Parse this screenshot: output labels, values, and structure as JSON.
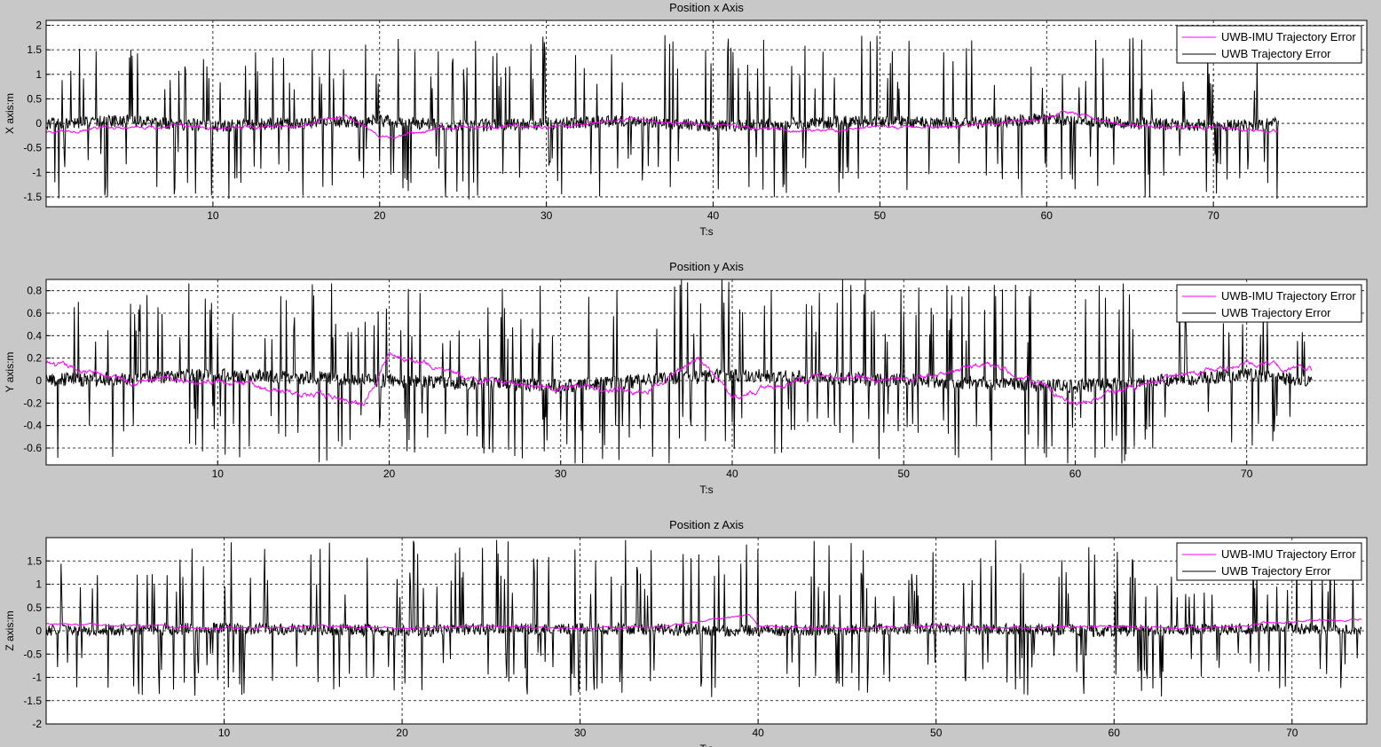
{
  "colors": {
    "figure_background": "#c8c8c8",
    "axes_background": "#ffffff",
    "imu_series": "#ff00ff",
    "uwb_series": "#000000"
  },
  "chart_data": [
    {
      "type": "line",
      "title": "Position x Axis",
      "xlabel": "T:s",
      "ylabel": "X axis:m",
      "xlim": [
        0,
        79.2
      ],
      "ylim": [
        -1.7,
        2.1
      ],
      "xticks": [
        10,
        20,
        30,
        40,
        50,
        60,
        70
      ],
      "yticks": [
        -1.5,
        -1,
        -0.5,
        0,
        0.5,
        1,
        1.5,
        2
      ],
      "grid": true,
      "legend_position": "top-right",
      "x_end": 73.9,
      "series": [
        {
          "name": "UWB-IMU Trajectory Error",
          "color": "#ff00ff",
          "amplitude_range": [
            -0.4,
            0.3
          ],
          "x": [
            0,
            5,
            10,
            15,
            18,
            20,
            25,
            30,
            35,
            40,
            45,
            50,
            55,
            60,
            61,
            65,
            70,
            73.9
          ],
          "y": [
            -0.2,
            -0.05,
            -0.1,
            -0.05,
            0.15,
            -0.3,
            -0.05,
            -0.1,
            0.1,
            -0.05,
            -0.15,
            -0.1,
            -0.05,
            0.1,
            0.25,
            -0.05,
            -0.1,
            -0.15
          ]
        },
        {
          "name": "UWB Trajectory Error",
          "color": "#000000",
          "amplitude_range": [
            -1.55,
            1.8
          ],
          "x": [
            0,
            5,
            10,
            15,
            20,
            25,
            30,
            35,
            40,
            45,
            50,
            55,
            60,
            65,
            70,
            73.9
          ],
          "y": [
            0.0,
            0.05,
            -0.05,
            0.0,
            0.05,
            -0.05,
            0.0,
            0.05,
            -0.05,
            0.0,
            0.05,
            0.0,
            0.1,
            0.0,
            -0.05,
            0.0
          ]
        }
      ]
    },
    {
      "type": "line",
      "title": "Position y Axis",
      "xlabel": "T:s",
      "ylabel": "Y axis:m",
      "xlim": [
        0,
        77
      ],
      "ylim": [
        -0.75,
        0.9
      ],
      "xticks": [
        10,
        20,
        30,
        40,
        50,
        60,
        70
      ],
      "yticks": [
        -0.6,
        -0.4,
        -0.2,
        0,
        0.2,
        0.4,
        0.6,
        0.8
      ],
      "grid": true,
      "legend_position": "top-right",
      "x_end": 73.8,
      "series": [
        {
          "name": "UWB-IMU Trajectory Error",
          "color": "#ff00ff",
          "amplitude_range": [
            -0.25,
            0.25
          ],
          "x": [
            0,
            5,
            10,
            18.5,
            20,
            25,
            30,
            35,
            38,
            40,
            45,
            50,
            55,
            60,
            65,
            70,
            73.8
          ],
          "y": [
            0.15,
            0.0,
            0.0,
            -0.2,
            0.25,
            0.0,
            -0.05,
            -0.1,
            0.2,
            -0.15,
            0.05,
            0.0,
            0.15,
            -0.2,
            0.0,
            0.15,
            0.1
          ]
        },
        {
          "name": "UWB Trajectory Error",
          "color": "#000000",
          "amplitude_range": [
            -0.75,
            0.9
          ],
          "x": [
            0,
            10,
            20,
            30,
            40,
            50,
            60,
            70,
            73.8
          ],
          "y": [
            0.0,
            0.05,
            0.0,
            -0.05,
            0.05,
            0.0,
            -0.05,
            0.05,
            0.0
          ]
        }
      ]
    },
    {
      "type": "line",
      "title": "Position z Axis",
      "xlabel": "T:s",
      "ylabel": "Z axis:m",
      "xlim": [
        0,
        74.2
      ],
      "ylim": [
        -2,
        2
      ],
      "xticks": [
        10,
        20,
        30,
        40,
        50,
        60,
        70
      ],
      "yticks": [
        -2,
        -1.5,
        -1,
        -0.5,
        0,
        0.5,
        1,
        1.5
      ],
      "grid": true,
      "legend_position": "top-right",
      "x_end": 73.9,
      "series": [
        {
          "name": "UWB-IMU Trajectory Error",
          "color": "#ff00ff",
          "amplitude_range": [
            -0.15,
            0.35
          ],
          "x": [
            0,
            5,
            10,
            15,
            20,
            25,
            30,
            35,
            39.5,
            40,
            45,
            50,
            55,
            60,
            65,
            70,
            73.9
          ],
          "y": [
            0.15,
            0.1,
            0.05,
            0.1,
            0.05,
            0.1,
            0.05,
            0.1,
            0.35,
            0.1,
            0.05,
            0.1,
            0.05,
            0.1,
            0.05,
            0.2,
            0.25
          ]
        },
        {
          "name": "UWB Trajectory Error",
          "color": "#000000",
          "amplitude_range": [
            -1.45,
            1.95
          ],
          "x": [
            0,
            10,
            20,
            30,
            40,
            50,
            60,
            70,
            73.9
          ],
          "y": [
            0.0,
            0.05,
            0.0,
            0.05,
            0.0,
            0.05,
            0.0,
            0.05,
            0.0
          ]
        }
      ]
    }
  ]
}
